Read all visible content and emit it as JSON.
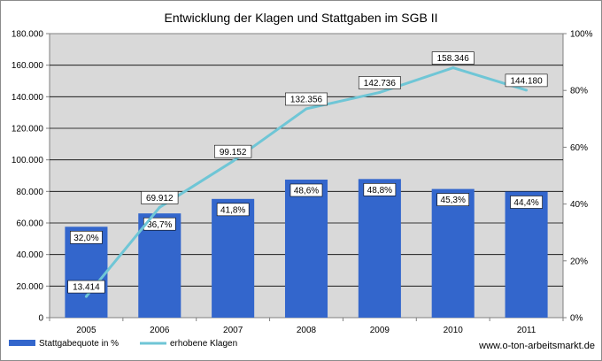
{
  "chart_data": {
    "type": "bar",
    "title": "Entwicklung der Klagen und Stattgaben im SGB II",
    "categories": [
      "2005",
      "2006",
      "2007",
      "2008",
      "2009",
      "2010",
      "2011"
    ],
    "y_left": {
      "min": 0,
      "max": 180000,
      "step": 20000,
      "ticks": [
        "0",
        "20.000",
        "40.000",
        "60.000",
        "80.000",
        "100.000",
        "120.000",
        "140.000",
        "160.000",
        "180.000"
      ]
    },
    "y_right": {
      "min": 0,
      "max": 100,
      "step": 20,
      "ticks": [
        "0%",
        "20%",
        "40%",
        "60%",
        "80%",
        "100%"
      ]
    },
    "series": [
      {
        "name": "Stattgabequote in %",
        "kind": "bar",
        "axis": "right",
        "color": "#3366cc",
        "values": [
          32.0,
          36.7,
          41.8,
          48.6,
          48.8,
          45.3,
          44.4
        ],
        "labels": [
          "32,0%",
          "36,7%",
          "41,8%",
          "48,6%",
          "48,8%",
          "45,3%",
          "44,4%"
        ]
      },
      {
        "name": "erhobene Klagen",
        "kind": "line",
        "axis": "left",
        "color": "#6fc6d6",
        "values": [
          13414,
          69912,
          99152,
          132356,
          142736,
          158346,
          144180
        ],
        "labels": [
          "13.414",
          "69.912",
          "99.152",
          "132.356",
          "142.736",
          "158.346",
          "144.180"
        ]
      }
    ],
    "grid": true,
    "plot_background": "#d9d9d9",
    "legend_position": "bottom-left"
  },
  "source_text": "www.o-ton-arbeitsmarkt.de"
}
